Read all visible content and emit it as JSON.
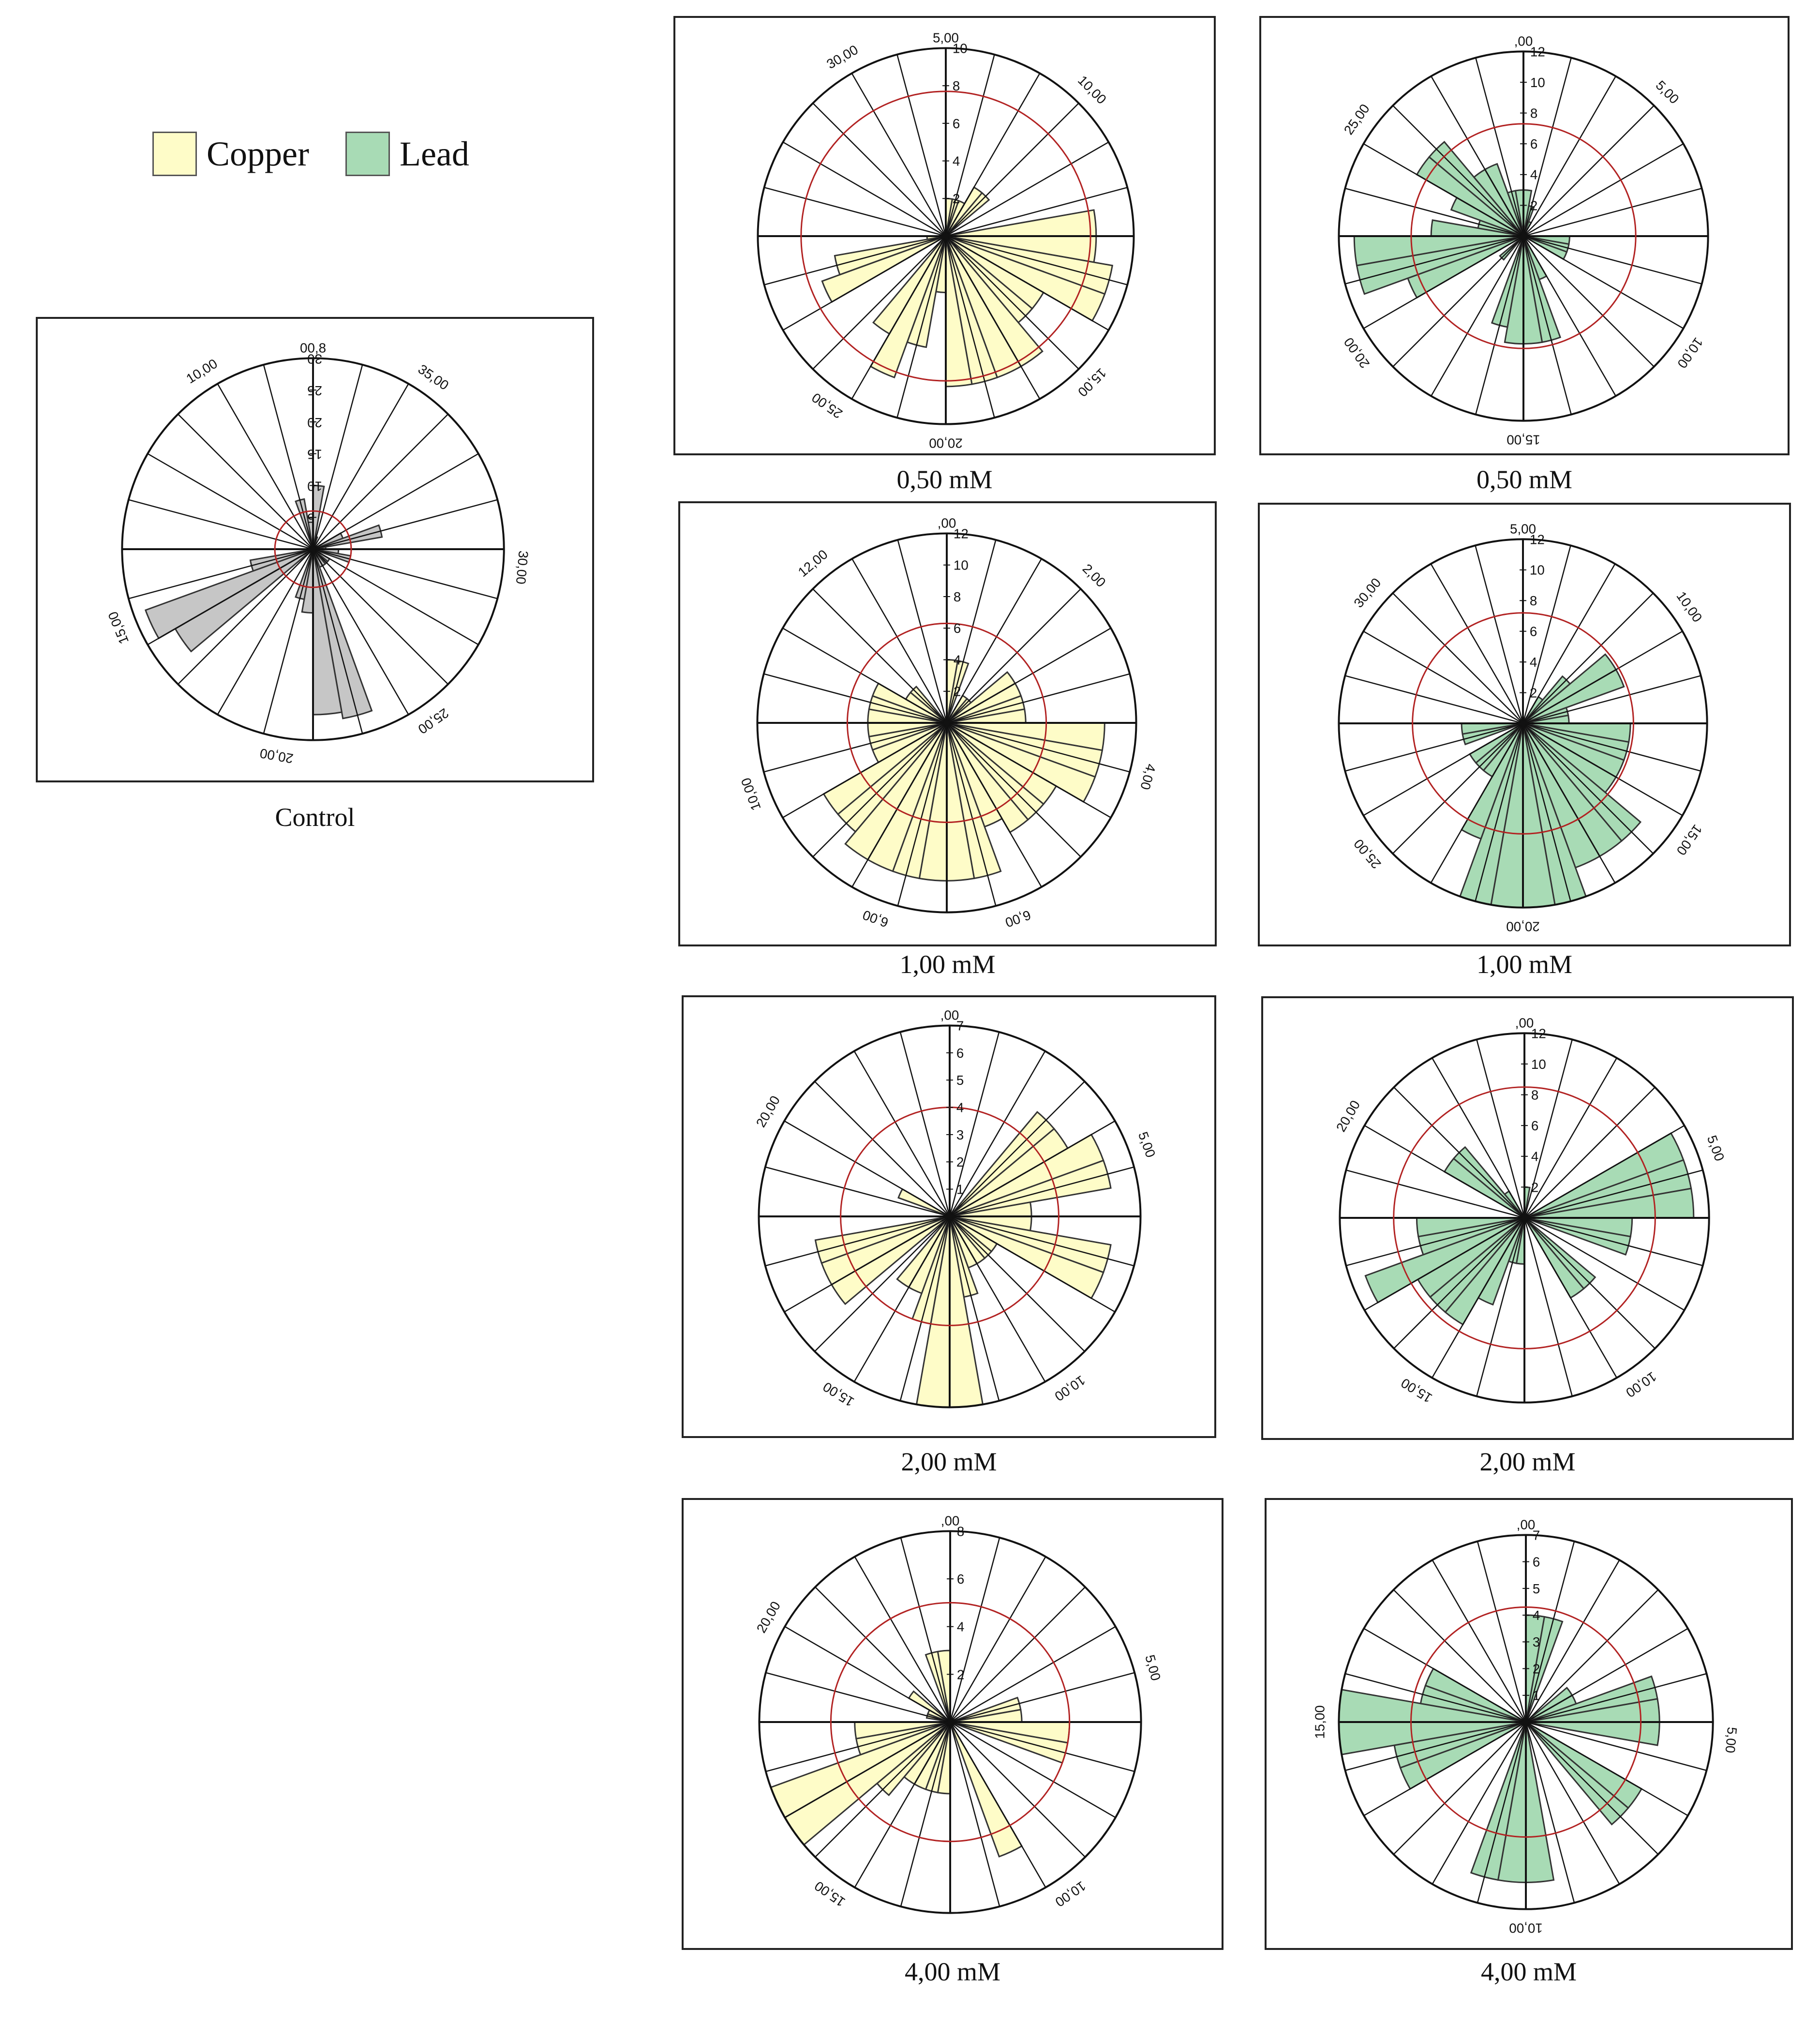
{
  "legend": {
    "items": [
      {
        "label": "Copper",
        "color": "#fefcc8"
      },
      {
        "label": "Lead",
        "color": "#a8dbb5"
      }
    ]
  },
  "colors": {
    "control": "#c6c6c6",
    "copper": "#fefcc8",
    "lead": "#a8dbb5",
    "mean_circle": "#b22222"
  },
  "chart_data": [
    {
      "id": "control",
      "type": "rose",
      "series": "Control",
      "caption": "Control",
      "radial_ticks": [
        "5",
        "10",
        "15",
        "20",
        "25",
        "30"
      ],
      "r_max": 30,
      "tick_direction": "ccw",
      "start_label": "00,8",
      "direction_labels": [
        {
          "text": "10,00",
          "angle": 328
        },
        {
          "text": "35,00",
          "angle": 35
        },
        {
          "text": "30,00",
          "angle": 95
        },
        {
          "text": "25,00",
          "angle": 145
        },
        {
          "text": "20,00",
          "angle": 190
        },
        {
          "text": "15,00",
          "angle": 248
        }
      ],
      "bins_deg": 10,
      "values": [
        10,
        2,
        0,
        0,
        0,
        0,
        5,
        11,
        2,
        4,
        6,
        0,
        3,
        3,
        3,
        3,
        27,
        26,
        10,
        8,
        0,
        0,
        0,
        25,
        28,
        10,
        0,
        0,
        0,
        0,
        0,
        0,
        0,
        0,
        8,
        5
      ],
      "mean_radius": 6
    },
    {
      "id": "copper-050",
      "type": "rose",
      "series": "Copper",
      "caption": "0,50 mM",
      "radial_ticks": [
        "2",
        "4",
        "6",
        "8",
        "10"
      ],
      "r_max": 10,
      "tick_direction": "cw",
      "start_label": "5,00",
      "direction_labels": [
        {
          "text": "10,00",
          "angle": 45
        },
        {
          "text": "15,00",
          "angle": 135
        },
        {
          "text": "20,00",
          "angle": 180
        },
        {
          "text": "25,00",
          "angle": 215
        },
        {
          "text": "30,00",
          "angle": 330
        }
      ],
      "bins_deg": 10,
      "values": [
        2,
        2,
        2,
        3,
        3,
        0,
        0,
        0,
        8,
        8,
        9,
        9,
        6,
        6,
        8,
        8,
        8,
        8,
        3,
        6,
        8,
        6,
        0,
        0,
        7,
        6,
        1,
        0,
        0,
        0,
        0,
        0,
        0,
        0,
        0,
        0
      ],
      "mean_radius": 7.7
    },
    {
      "id": "lead-050",
      "type": "rose",
      "series": "Lead",
      "caption": "0,50 mM",
      "radial_ticks": [
        "2",
        "4",
        "6",
        "8",
        "10",
        "12"
      ],
      "r_max": 12,
      "tick_direction": "cw",
      "start_label": ",00",
      "direction_labels": [
        {
          "text": "5,00",
          "angle": 45
        },
        {
          "text": "10,00",
          "angle": 125
        },
        {
          "text": "15,00",
          "angle": 180
        },
        {
          "text": "20,00",
          "angle": 235
        },
        {
          "text": "25,00",
          "angle": 305
        }
      ],
      "bins_deg": 10,
      "values": [
        3,
        2,
        1,
        0,
        0,
        0,
        0,
        0,
        0,
        3,
        3,
        3,
        0,
        0,
        0,
        3,
        7,
        7,
        7,
        6,
        0,
        0,
        2,
        0,
        8,
        11,
        11,
        6,
        3,
        5,
        8,
        8,
        5,
        5,
        3,
        3
      ],
      "mean_radius": 7.3
    },
    {
      "id": "copper-100",
      "type": "rose",
      "series": "Copper",
      "caption": "1,00 mM",
      "radial_ticks": [
        "2",
        "4",
        "6",
        "8",
        "10",
        "12"
      ],
      "r_max": 12,
      "tick_direction": "cw",
      "start_label": ",00",
      "direction_labels": [
        {
          "text": "2,00",
          "angle": 45
        },
        {
          "text": "4,00",
          "angle": 105
        },
        {
          "text": "6,00",
          "angle": 160
        },
        {
          "text": "6,00",
          "angle": 200
        },
        {
          "text": "10,00",
          "angle": 250
        },
        {
          "text": "12,00",
          "angle": 320
        }
      ],
      "bins_deg": 10,
      "values": [
        4,
        4,
        0,
        2,
        2,
        5,
        5,
        5,
        5,
        10,
        10,
        10,
        8,
        8,
        8,
        7,
        10,
        10,
        10,
        10,
        10,
        10,
        9,
        9,
        5,
        5,
        5,
        5,
        5,
        5,
        3,
        3,
        0,
        0,
        0,
        0
      ],
      "mean_radius": 6.3
    },
    {
      "id": "lead-100",
      "type": "rose",
      "series": "Lead",
      "caption": "1,00 mM",
      "radial_ticks": [
        "2",
        "4",
        "6",
        "8",
        "10",
        "12"
      ],
      "r_max": 12,
      "tick_direction": "cw",
      "start_label": "5,00",
      "direction_labels": [
        {
          "text": "10,00",
          "angle": 55
        },
        {
          "text": "15,00",
          "angle": 125
        },
        {
          "text": "20,00",
          "angle": 180
        },
        {
          "text": "25,00",
          "angle": 230
        },
        {
          "text": "30,00",
          "angle": 310
        }
      ],
      "bins_deg": 10,
      "values": [
        0,
        0,
        0,
        2,
        4,
        7,
        7,
        3,
        3,
        7,
        7,
        7,
        7,
        10,
        10,
        10,
        12,
        12,
        12,
        12,
        8,
        4,
        4,
        4,
        0,
        4,
        4,
        0,
        0,
        0,
        0,
        0,
        0,
        0,
        0,
        0
      ],
      "mean_radius": 7.2
    },
    {
      "id": "copper-200",
      "type": "rose",
      "series": "Copper",
      "caption": "2,00 mM",
      "radial_ticks": [
        "1",
        "2",
        "3",
        "4",
        "5",
        "6",
        "7"
      ],
      "r_max": 7,
      "tick_direction": "cw",
      "start_label": ",00",
      "direction_labels": [
        {
          "text": "5,00",
          "angle": 70
        },
        {
          "text": "10,00",
          "angle": 145
        },
        {
          "text": "15,00",
          "angle": 212
        },
        {
          "text": "20,00",
          "angle": 300
        }
      ],
      "bins_deg": 10,
      "values": [
        0,
        0,
        0,
        0,
        5,
        5,
        6,
        6,
        3,
        3,
        6,
        6,
        2,
        2,
        2,
        2,
        3,
        7,
        7,
        4,
        3,
        3,
        0,
        5,
        5,
        5,
        0,
        0,
        0,
        2,
        0,
        0,
        0,
        0,
        0,
        0
      ],
      "mean_radius": 4
    },
    {
      "id": "lead-200",
      "type": "rose",
      "series": "Lead",
      "caption": "2,00 mM",
      "radial_ticks": [
        "2",
        "4",
        "6",
        "8",
        "10",
        "12"
      ],
      "r_max": 12,
      "tick_direction": "cw",
      "start_label": ",00",
      "direction_labels": [
        {
          "text": "5,00",
          "angle": 70
        },
        {
          "text": "10,00",
          "angle": 145
        },
        {
          "text": "15,00",
          "angle": 212
        },
        {
          "text": "20,00",
          "angle": 300
        }
      ],
      "bins_deg": 10,
      "values": [
        2,
        0,
        0,
        0,
        0,
        0,
        11,
        11,
        11,
        7,
        7,
        0,
        0,
        6,
        6,
        0,
        0,
        0,
        3,
        3,
        6,
        8,
        8,
        8,
        11,
        7,
        7,
        0,
        0,
        0,
        6,
        6,
        2,
        0,
        0,
        0
      ],
      "mean_radius": 8.5
    },
    {
      "id": "copper-400",
      "type": "rose",
      "series": "Copper",
      "caption": "4,00 mM",
      "radial_ticks": [
        "2",
        "4",
        "6",
        "8"
      ],
      "r_max": 8,
      "tick_direction": "cw",
      "start_label": ",00",
      "direction_labels": [
        {
          "text": "5,00",
          "angle": 75
        },
        {
          "text": "10,00",
          "angle": 145
        },
        {
          "text": "15,00",
          "angle": 215
        },
        {
          "text": "20,00",
          "angle": 300
        }
      ],
      "bins_deg": 10,
      "values": [
        0,
        0,
        0,
        0,
        0,
        0,
        0,
        3,
        3,
        5,
        5,
        0,
        0,
        0,
        0,
        6,
        0,
        0,
        3,
        3,
        3,
        3,
        4,
        8,
        8,
        4,
        4,
        0,
        1,
        1,
        2,
        0,
        0,
        0,
        3,
        3
      ],
      "mean_radius": 5
    },
    {
      "id": "lead-400",
      "type": "rose",
      "series": "Lead",
      "caption": "4,00 mM",
      "radial_ticks": [
        "1",
        "2",
        "3",
        "4",
        "5",
        "6",
        "7"
      ],
      "r_max": 7,
      "tick_direction": "cw",
      "start_label": ",00",
      "direction_labels": [
        {
          "text": "5,00",
          "angle": 95
        },
        {
          "text": "10,00",
          "angle": 180
        },
        {
          "text": "15,00",
          "angle": 270
        }
      ],
      "bins_deg": 10,
      "values": [
        4,
        4,
        0,
        0,
        0,
        2,
        2,
        5,
        5,
        5,
        0,
        0,
        5,
        5,
        0,
        0,
        0,
        6,
        6,
        6,
        0,
        0,
        0,
        0,
        5,
        5,
        7,
        7,
        4,
        4,
        0,
        0,
        0,
        0,
        0,
        0
      ],
      "mean_radius": 4.3
    }
  ]
}
